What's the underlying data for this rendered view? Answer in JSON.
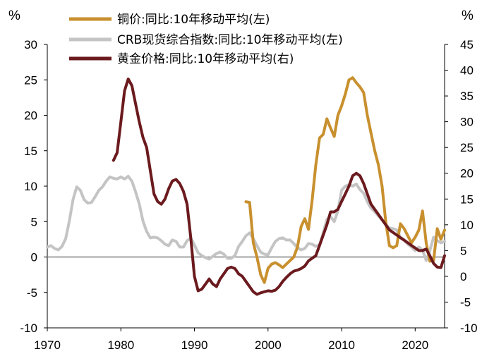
{
  "chart_data": {
    "type": "line",
    "title": "",
    "left_unit": "%",
    "right_unit": "%",
    "xlim": [
      1970,
      2024
    ],
    "ylim_left": [
      -10,
      30
    ],
    "ylim_right": [
      -10,
      45
    ],
    "x_ticks": [
      "1970",
      "1980",
      "1990",
      "2000",
      "2010",
      "2020"
    ],
    "y_ticks_left": [
      "30",
      "25",
      "20",
      "15",
      "10",
      "5",
      "0",
      "-5",
      "-10"
    ],
    "y_ticks_right": [
      "45",
      "40",
      "35",
      "30",
      "25",
      "20",
      "15",
      "10",
      "5",
      "0",
      "-5",
      "-10"
    ],
    "colors": {
      "copper": "#C8902E",
      "crb": "#C4C4C4",
      "gold": "#6B1A1E",
      "zero_line": "#7F7F7F"
    },
    "series": [
      {
        "name": "铜价:同比:10年移动平均(左)",
        "axis": "left",
        "x": [
          1997.0,
          1997.5,
          1998.0,
          1998.5,
          1999.0,
          1999.5,
          2000.0,
          2000.5,
          2001.0,
          2001.5,
          2002.0,
          2002.5,
          2003.0,
          2003.5,
          2004.0,
          2004.5,
          2005.0,
          2005.5,
          2006.0,
          2006.5,
          2007.0,
          2007.5,
          2008.0,
          2008.5,
          2009.0,
          2009.5,
          2010.0,
          2010.5,
          2011.0,
          2011.5,
          2012.0,
          2012.5,
          2013.0,
          2013.5,
          2014.0,
          2014.5,
          2015.0,
          2015.5,
          2016.0,
          2016.5,
          2017.0,
          2017.5,
          2018.0,
          2018.5,
          2019.0,
          2019.5,
          2020.0,
          2020.5,
          2021.0,
          2021.5,
          2022.0,
          2022.5,
          2023.0,
          2023.5,
          2024.0
        ],
        "values": [
          7.8,
          7.7,
          2.0,
          0.0,
          -2.5,
          -3.6,
          -1.6,
          -1.0,
          -0.8,
          -1.1,
          -1.5,
          -1.0,
          -0.5,
          0.0,
          1.4,
          4.3,
          5.4,
          3.9,
          8.0,
          13.0,
          16.8,
          17.3,
          19.5,
          18.2,
          17.0,
          20.0,
          21.3,
          23.0,
          25.0,
          25.3,
          24.6,
          24.0,
          23.2,
          20.0,
          17.5,
          15.0,
          13.0,
          10.0,
          5.0,
          1.6,
          1.3,
          1.6,
          4.7,
          4.0,
          3.0,
          2.0,
          2.8,
          3.8,
          6.5,
          2.0,
          -0.6,
          -0.5,
          4.0,
          2.5,
          3.8
        ]
      },
      {
        "name": "CRB现货综合指数:同比:10年移动平均(左)",
        "axis": "left",
        "x": [
          1970.0,
          1970.5,
          1971.0,
          1971.5,
          1972.0,
          1972.5,
          1973.0,
          1973.5,
          1974.0,
          1974.5,
          1975.0,
          1975.5,
          1976.0,
          1976.5,
          1977.0,
          1977.5,
          1978.0,
          1978.5,
          1979.0,
          1979.5,
          1980.0,
          1980.5,
          1981.0,
          1981.5,
          1982.0,
          1982.5,
          1983.0,
          1983.5,
          1984.0,
          1984.5,
          1985.0,
          1985.5,
          1986.0,
          1986.5,
          1987.0,
          1987.5,
          1988.0,
          1988.5,
          1989.0,
          1989.5,
          1990.0,
          1990.5,
          1991.0,
          1991.5,
          1992.0,
          1992.5,
          1993.0,
          1993.5,
          1994.0,
          1994.5,
          1995.0,
          1995.5,
          1996.0,
          1996.5,
          1997.0,
          1997.5,
          1998.0,
          1998.5,
          1999.0,
          1999.5,
          2000.0,
          2000.5,
          2001.0,
          2001.5,
          2002.0,
          2002.5,
          2003.0,
          2003.5,
          2004.0,
          2004.5,
          2005.0,
          2005.5,
          2006.0,
          2006.5,
          2007.0,
          2007.5,
          2008.0,
          2008.5,
          2009.0,
          2009.5,
          2010.0,
          2010.5,
          2011.0,
          2011.5,
          2012.0,
          2012.5,
          2013.0,
          2013.5,
          2014.0,
          2014.5,
          2015.0,
          2015.5,
          2016.0,
          2016.5,
          2017.0,
          2017.5,
          2018.0,
          2018.5,
          2019.0,
          2019.5,
          2020.0,
          2020.5,
          2021.0,
          2021.5,
          2022.0,
          2022.5,
          2023.0,
          2023.5,
          2024.0
        ],
        "values": [
          1.4,
          1.6,
          1.2,
          1.0,
          1.5,
          2.6,
          5.1,
          8.1,
          9.9,
          9.4,
          8.1,
          7.6,
          7.7,
          8.5,
          9.4,
          9.9,
          10.7,
          11.3,
          11.1,
          11.0,
          11.3,
          11.0,
          11.4,
          10.7,
          9.2,
          7.5,
          5.1,
          3.6,
          2.7,
          2.8,
          2.7,
          2.3,
          1.8,
          1.6,
          2.4,
          2.2,
          1.4,
          1.4,
          2.3,
          2.7,
          1.7,
          0.6,
          0.2,
          -0.1,
          -0.3,
          0.1,
          0.5,
          0.7,
          0.4,
          -0.2,
          -0.2,
          0.2,
          1.5,
          2.2,
          3.0,
          3.4,
          2.6,
          1.6,
          0.7,
          0.4,
          0.3,
          1.3,
          2.2,
          2.6,
          2.7,
          2.4,
          2.4,
          1.9,
          1.3,
          1.0,
          1.2,
          1.9,
          1.8,
          1.5,
          1.7,
          3.4,
          5.3,
          5.7,
          5.0,
          6.5,
          9.4,
          10.0,
          10.2,
          10.0,
          10.3,
          9.5,
          9.0,
          7.8,
          6.9,
          6.4,
          5.8,
          5.2,
          4.6,
          4.1,
          4.0,
          3.8,
          2.8,
          2.4,
          1.8,
          1.4,
          0.9,
          1.4,
          1.0,
          -0.5,
          0.9,
          2.8,
          2.3,
          2.0,
          2.2
        ]
      },
      {
        "name": "黄金价格:同比:10年移动平均(右)",
        "axis": "right",
        "x": [
          1979.0,
          1979.5,
          1980.0,
          1980.5,
          1981.0,
          1981.5,
          1982.0,
          1982.5,
          1983.0,
          1983.5,
          1984.0,
          1984.5,
          1985.0,
          1985.5,
          1986.0,
          1986.5,
          1987.0,
          1987.5,
          1988.0,
          1988.5,
          1989.0,
          1989.5,
          1990.0,
          1990.5,
          1991.0,
          1991.5,
          1992.0,
          1992.5,
          1993.0,
          1993.5,
          1994.0,
          1994.5,
          1995.0,
          1995.5,
          1996.0,
          1996.5,
          1997.0,
          1997.5,
          1998.0,
          1998.5,
          1999.0,
          1999.5,
          2000.0,
          2000.5,
          2001.0,
          2001.5,
          2002.0,
          2002.5,
          2003.0,
          2003.5,
          2004.0,
          2004.5,
          2005.0,
          2005.5,
          2006.0,
          2006.5,
          2007.0,
          2007.5,
          2008.0,
          2008.5,
          2009.0,
          2009.5,
          2010.0,
          2010.5,
          2011.0,
          2011.5,
          2012.0,
          2012.5,
          2013.0,
          2013.5,
          2014.0,
          2014.5,
          2015.0,
          2015.5,
          2016.0,
          2016.5,
          2017.0,
          2017.5,
          2018.0,
          2018.5,
          2019.0,
          2019.5,
          2020.0,
          2020.5,
          2021.0,
          2021.5,
          2022.0,
          2022.5,
          2023.0,
          2023.5,
          2024.0
        ],
        "values": [
          22.5,
          24.0,
          30.0,
          36.0,
          38.3,
          37.0,
          33.5,
          30.0,
          27.0,
          25.0,
          20.5,
          16.0,
          14.5,
          14.0,
          15.0,
          17.0,
          18.5,
          18.8,
          18.0,
          16.5,
          14.0,
          7.5,
          0.0,
          -2.8,
          -2.5,
          -1.5,
          -0.5,
          -1.5,
          -2.0,
          -0.5,
          0.5,
          1.5,
          1.8,
          1.5,
          0.5,
          0.0,
          -1.0,
          -2.0,
          -3.0,
          -3.5,
          -3.2,
          -3.0,
          -2.8,
          -2.9,
          -2.7,
          -2.0,
          -1.0,
          -0.2,
          0.5,
          1.0,
          1.2,
          1.5,
          2.0,
          3.0,
          3.5,
          4.0,
          6.0,
          8.0,
          10.0,
          12.5,
          12.5,
          13.0,
          14.5,
          16.0,
          17.5,
          19.5,
          20.0,
          19.5,
          18.0,
          16.0,
          14.0,
          13.0,
          12.0,
          11.0,
          10.0,
          9.0,
          8.5,
          8.0,
          7.5,
          7.0,
          6.5,
          6.0,
          5.5,
          5.0,
          5.0,
          5.3,
          4.0,
          2.5,
          1.8,
          1.7,
          4.0
        ]
      }
    ]
  }
}
